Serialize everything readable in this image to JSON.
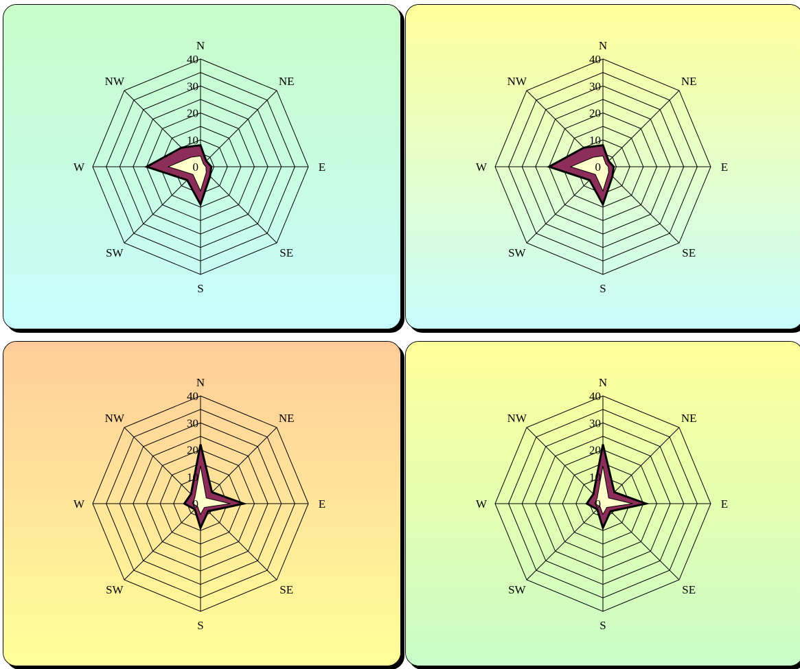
{
  "chart_data": [
    {
      "type": "radar",
      "directions": [
        "N",
        "NE",
        "E",
        "SE",
        "S",
        "SW",
        "W",
        "NW"
      ],
      "r_ticks": [
        "0",
        "10",
        "20",
        "30",
        "40"
      ],
      "rlim": [
        0,
        40
      ],
      "grid": true,
      "background": {
        "from": "#c8fcc8",
        "to": "#c8fcfc"
      },
      "series": [
        {
          "values": [
            8,
            3,
            4,
            5,
            14,
            7,
            20,
            10
          ],
          "fill": "#8c2d5a"
        },
        {
          "values": [
            4,
            1.5,
            2,
            3,
            9,
            4,
            12,
            5
          ],
          "fill": "#ffffcc"
        }
      ]
    },
    {
      "type": "radar",
      "directions": [
        "N",
        "NE",
        "E",
        "SE",
        "S",
        "SW",
        "W",
        "NW"
      ],
      "r_ticks": [
        "0",
        "10",
        "20",
        "30",
        "40"
      ],
      "rlim": [
        0,
        40
      ],
      "grid": true,
      "background": {
        "from": "#ffff99",
        "to": "#c8fcfc"
      },
      "series": [
        {
          "values": [
            8,
            3,
            4,
            5,
            14,
            7,
            20,
            10
          ],
          "fill": "#8c2d5a"
        },
        {
          "values": [
            4,
            1.5,
            2,
            3,
            9,
            4,
            12,
            5
          ],
          "fill": "#ffffcc"
        }
      ]
    },
    {
      "type": "radar",
      "directions": [
        "N",
        "NE",
        "E",
        "SE",
        "S",
        "SW",
        "W",
        "NW"
      ],
      "r_ticks": [
        "0",
        "10",
        "20",
        "30",
        "40"
      ],
      "rlim": [
        0,
        40
      ],
      "grid": true,
      "background": {
        "from": "#ffcc99",
        "to": "#ffff99"
      },
      "series": [
        {
          "values": [
            22,
            6,
            16,
            4,
            9,
            3,
            6,
            5
          ],
          "fill": "#8c2d5a"
        },
        {
          "values": [
            14,
            3,
            11,
            2,
            4,
            1.5,
            3,
            3
          ],
          "fill": "#ffffcc"
        }
      ]
    },
    {
      "type": "radar",
      "directions": [
        "N",
        "NE",
        "E",
        "SE",
        "S",
        "SW",
        "W",
        "NW"
      ],
      "r_ticks": [
        "0",
        "10",
        "20",
        "30",
        "40"
      ],
      "rlim": [
        0,
        40
      ],
      "grid": true,
      "background": {
        "from": "#ffff99",
        "to": "#c8fcc8"
      },
      "series": [
        {
          "values": [
            22,
            6,
            16,
            4,
            9,
            3,
            6,
            5
          ],
          "fill": "#8c2d5a"
        },
        {
          "values": [
            14,
            3,
            11,
            2,
            4,
            1.5,
            3,
            3
          ],
          "fill": "#ffffcc"
        }
      ]
    }
  ]
}
